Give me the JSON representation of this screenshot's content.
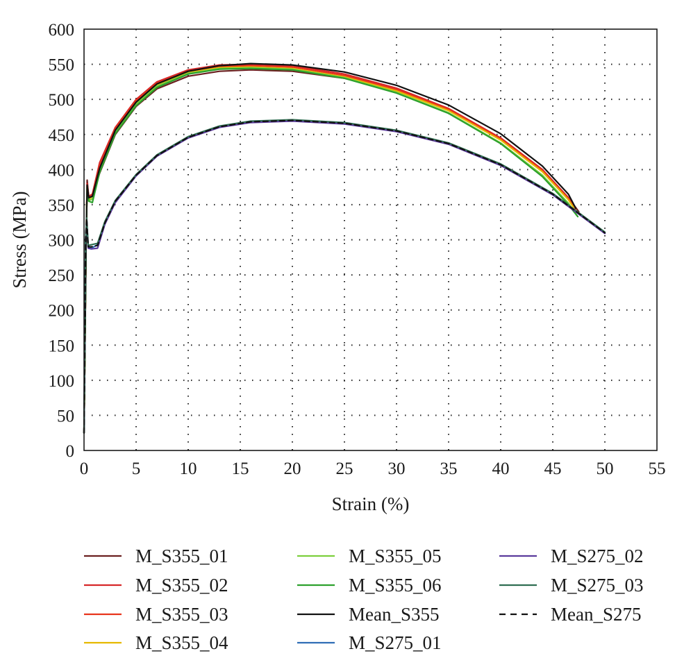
{
  "chart_data": {
    "type": "line",
    "xlabel": "Strain (%)",
    "ylabel": "Stress (MPa)",
    "xlim": [
      0,
      55
    ],
    "ylim": [
      0,
      600
    ],
    "xticks": [
      0,
      5,
      10,
      15,
      20,
      25,
      30,
      35,
      40,
      45,
      50,
      55
    ],
    "yticks": [
      0,
      50,
      100,
      150,
      200,
      250,
      300,
      350,
      400,
      450,
      500,
      550,
      600
    ],
    "grid": "dotted",
    "legend_position": "bottom",
    "series": [
      {
        "name": "M_S355_01",
        "color": "#6b1f1f",
        "dash": "solid",
        "points": [
          [
            0,
            25
          ],
          [
            0.2,
            300
          ],
          [
            0.3,
            385
          ],
          [
            0.45,
            360
          ],
          [
            0.8,
            362
          ],
          [
            1.5,
            395
          ],
          [
            3,
            450
          ],
          [
            5,
            490
          ],
          [
            7,
            515
          ],
          [
            10,
            533
          ],
          [
            13,
            540
          ],
          [
            16,
            542
          ],
          [
            20,
            540
          ],
          [
            25,
            530
          ],
          [
            30,
            512
          ],
          [
            35,
            485
          ],
          [
            40,
            445
          ],
          [
            44,
            400
          ],
          [
            46.5,
            360
          ],
          [
            47.5,
            340
          ]
        ]
      },
      {
        "name": "M_S355_02",
        "color": "#d62728",
        "dash": "solid",
        "points": [
          [
            0,
            25
          ],
          [
            0.2,
            300
          ],
          [
            0.3,
            380
          ],
          [
            0.45,
            362
          ],
          [
            0.8,
            365
          ],
          [
            1.5,
            410
          ],
          [
            3,
            460
          ],
          [
            5,
            500
          ],
          [
            7,
            525
          ],
          [
            10,
            542
          ],
          [
            13,
            549
          ],
          [
            16,
            550
          ],
          [
            20,
            548
          ],
          [
            25,
            536
          ],
          [
            30,
            516
          ],
          [
            35,
            487
          ],
          [
            40,
            445
          ],
          [
            44,
            400
          ],
          [
            46.5,
            360
          ],
          [
            47.2,
            345
          ]
        ]
      },
      {
        "name": "M_S355_03",
        "color": "#e8341c",
        "dash": "solid",
        "points": [
          [
            0,
            25
          ],
          [
            0.2,
            300
          ],
          [
            0.3,
            378
          ],
          [
            0.45,
            360
          ],
          [
            0.8,
            363
          ],
          [
            1.5,
            405
          ],
          [
            3,
            458
          ],
          [
            5,
            498
          ],
          [
            7,
            523
          ],
          [
            10,
            540
          ],
          [
            13,
            547
          ],
          [
            16,
            548
          ],
          [
            20,
            546
          ],
          [
            25,
            534
          ],
          [
            30,
            514
          ],
          [
            35,
            486
          ],
          [
            40,
            444
          ],
          [
            44,
            399
          ],
          [
            46.5,
            358
          ],
          [
            47.2,
            344
          ]
        ]
      },
      {
        "name": "M_S355_04",
        "color": "#e6b800",
        "dash": "solid",
        "points": [
          [
            0,
            25
          ],
          [
            0.2,
            300
          ],
          [
            0.3,
            376
          ],
          [
            0.45,
            358
          ],
          [
            0.8,
            361
          ],
          [
            1.5,
            400
          ],
          [
            3,
            455
          ],
          [
            5,
            495
          ],
          [
            7,
            520
          ],
          [
            10,
            538
          ],
          [
            13,
            545
          ],
          [
            16,
            546
          ],
          [
            20,
            544
          ],
          [
            25,
            532
          ],
          [
            30,
            512
          ],
          [
            35,
            484
          ],
          [
            40,
            442
          ],
          [
            44,
            397
          ],
          [
            46.5,
            357
          ],
          [
            47,
            346
          ]
        ]
      },
      {
        "name": "M_S355_05",
        "color": "#7ccf3c",
        "dash": "solid",
        "points": [
          [
            0,
            25
          ],
          [
            0.2,
            300
          ],
          [
            0.3,
            376
          ],
          [
            0.45,
            356
          ],
          [
            0.8,
            358
          ],
          [
            1.5,
            398
          ],
          [
            3,
            453
          ],
          [
            5,
            493
          ],
          [
            7,
            519
          ],
          [
            10,
            537
          ],
          [
            13,
            544
          ],
          [
            16,
            545
          ],
          [
            20,
            543
          ],
          [
            25,
            531
          ],
          [
            30,
            510
          ],
          [
            35,
            481
          ],
          [
            40,
            438
          ],
          [
            44,
            392
          ],
          [
            46.5,
            352
          ],
          [
            47.3,
            335
          ]
        ]
      },
      {
        "name": "M_S355_06",
        "color": "#2ca02c",
        "dash": "solid",
        "points": [
          [
            0,
            25
          ],
          [
            0.2,
            300
          ],
          [
            0.3,
            375
          ],
          [
            0.45,
            355
          ],
          [
            0.8,
            353
          ],
          [
            1.5,
            396
          ],
          [
            3,
            451
          ],
          [
            5,
            491
          ],
          [
            7,
            517
          ],
          [
            10,
            536
          ],
          [
            13,
            543
          ],
          [
            16,
            544
          ],
          [
            20,
            542
          ],
          [
            25,
            530
          ],
          [
            30,
            509
          ],
          [
            35,
            480
          ],
          [
            40,
            437
          ],
          [
            44,
            390
          ],
          [
            46.5,
            350
          ],
          [
            47.4,
            333
          ]
        ]
      },
      {
        "name": "Mean_S355",
        "color": "#111111",
        "dash": "solid",
        "points": [
          [
            0,
            25
          ],
          [
            0.2,
            300
          ],
          [
            0.3,
            378
          ],
          [
            0.45,
            360
          ],
          [
            0.8,
            362
          ],
          [
            1.5,
            402
          ],
          [
            3,
            456
          ],
          [
            5,
            496
          ],
          [
            7,
            522
          ],
          [
            10,
            540
          ],
          [
            13,
            548
          ],
          [
            16,
            551
          ],
          [
            20,
            549
          ],
          [
            25,
            539
          ],
          [
            30,
            520
          ],
          [
            35,
            492
          ],
          [
            40,
            451
          ],
          [
            44,
            405
          ],
          [
            46.5,
            365
          ],
          [
            47.2,
            345
          ]
        ]
      },
      {
        "name": "M_S275_01",
        "color": "#2f6db5",
        "dash": "solid",
        "points": [
          [
            0,
            25
          ],
          [
            0.15,
            300
          ],
          [
            0.25,
            330
          ],
          [
            0.4,
            290
          ],
          [
            0.7,
            288
          ],
          [
            1.3,
            293
          ],
          [
            2,
            325
          ],
          [
            3,
            355
          ],
          [
            5,
            392
          ],
          [
            7,
            420
          ],
          [
            10,
            446
          ],
          [
            13,
            461
          ],
          [
            16,
            468
          ],
          [
            20,
            470
          ],
          [
            25,
            466
          ],
          [
            30,
            455
          ],
          [
            35,
            437
          ],
          [
            40,
            407
          ],
          [
            45,
            365
          ],
          [
            50,
            310
          ]
        ]
      },
      {
        "name": "M_S275_02",
        "color": "#5b3a9c",
        "dash": "solid",
        "points": [
          [
            0,
            25
          ],
          [
            0.15,
            300
          ],
          [
            0.25,
            328
          ],
          [
            0.4,
            288
          ],
          [
            0.7,
            287
          ],
          [
            1.3,
            288
          ],
          [
            2,
            322
          ],
          [
            3,
            353
          ],
          [
            5,
            391
          ],
          [
            7,
            419
          ],
          [
            10,
            445
          ],
          [
            13,
            460
          ],
          [
            16,
            467
          ],
          [
            20,
            469
          ],
          [
            25,
            465
          ],
          [
            30,
            454
          ],
          [
            35,
            436
          ],
          [
            40,
            406
          ],
          [
            45,
            364
          ],
          [
            50,
            309
          ]
        ]
      },
      {
        "name": "M_S275_03",
        "color": "#2f6e52",
        "dash": "solid",
        "points": [
          [
            0,
            25
          ],
          [
            0.15,
            300
          ],
          [
            0.25,
            331
          ],
          [
            0.4,
            292
          ],
          [
            0.7,
            293
          ],
          [
            1.3,
            295
          ],
          [
            2,
            326
          ],
          [
            3,
            356
          ],
          [
            5,
            393
          ],
          [
            7,
            421
          ],
          [
            10,
            447
          ],
          [
            13,
            462
          ],
          [
            16,
            469
          ],
          [
            20,
            471
          ],
          [
            25,
            467
          ],
          [
            30,
            456
          ],
          [
            35,
            438
          ],
          [
            40,
            408
          ],
          [
            45,
            366
          ],
          [
            50,
            311
          ]
        ]
      },
      {
        "name": "Mean_S275",
        "color": "#111111",
        "dash": "dashed",
        "points": [
          [
            0,
            25
          ],
          [
            0.15,
            300
          ],
          [
            0.25,
            330
          ],
          [
            0.4,
            290
          ],
          [
            0.7,
            290
          ],
          [
            1.3,
            292
          ],
          [
            2,
            324
          ],
          [
            3,
            355
          ],
          [
            5,
            392
          ],
          [
            7,
            420
          ],
          [
            10,
            446
          ],
          [
            13,
            461
          ],
          [
            16,
            468
          ],
          [
            20,
            470
          ],
          [
            25,
            466
          ],
          [
            30,
            455
          ],
          [
            35,
            437
          ],
          [
            40,
            407
          ],
          [
            45,
            365
          ],
          [
            50,
            310
          ]
        ]
      }
    ]
  }
}
